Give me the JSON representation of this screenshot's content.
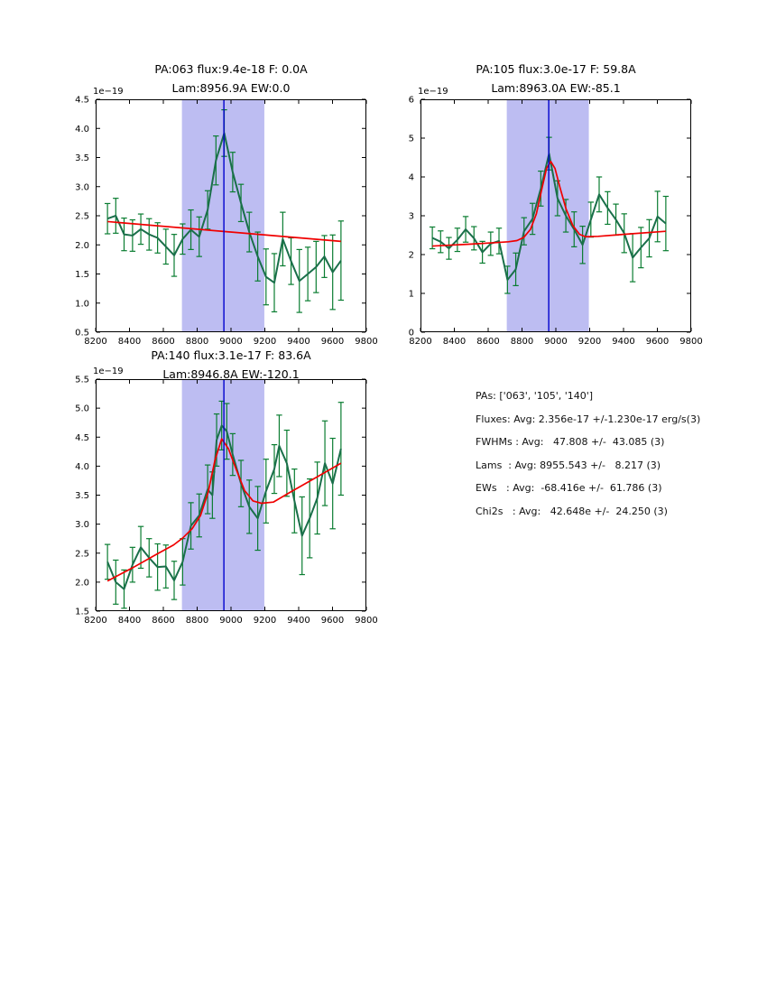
{
  "colors": {
    "background": "#ffffff",
    "band": "#bdbdf2",
    "vline": "#0000cd",
    "data_line": "#1a6f4a",
    "error_bar": "#0a7d31",
    "fit_line": "#f00000",
    "frame": "#000000",
    "text": "#000000"
  },
  "summary": {
    "lines": [
      "PAs: ['063', '105', '140']",
      "Fluxes: Avg: 2.356e-17 +/-1.230e-17 erg/s(3)",
      "FWHMs : Avg:   47.808 +/-  43.085 (3)",
      "Lams  : Avg: 8955.543 +/-   8.217 (3)",
      "EWs   : Avg:  -68.416e +/-  61.786 (3)",
      "Chi2s   : Avg:   42.648e +/-  24.250 (3)"
    ]
  },
  "chart_data": [
    {
      "type": "line",
      "title_line1": "PA:063 flux:9.4e-18 F: 0.0A",
      "title_line2": "Lam:8956.9A EW:0.0",
      "pa": "063",
      "flux": "9.4e-18",
      "fwhm_A": 0.0,
      "lam_A": 8956.9,
      "ew": 0.0,
      "offset_label": "1e−19",
      "xlim": [
        8200,
        9800
      ],
      "ylim": [
        0.5,
        4.5
      ],
      "xticks": [
        8200,
        8400,
        8600,
        8800,
        9000,
        9200,
        9400,
        9600,
        9800
      ],
      "xtick_labels": [
        "8200",
        "8400",
        "8600",
        "8800",
        "9000",
        "9200",
        "9400",
        "9600",
        "9800"
      ],
      "yticks": [
        0.5,
        1.0,
        1.5,
        2.0,
        2.5,
        3.0,
        3.5,
        4.0,
        4.5
      ],
      "ytick_labels": [
        "0.5",
        "1.0",
        "1.5",
        "2.0",
        "2.5",
        "3.0",
        "3.5",
        "4.0",
        "4.5"
      ],
      "band": [
        8710,
        9197
      ],
      "vline": 8958,
      "grid": false,
      "legend": null,
      "series": [
        {
          "name": "spectrum",
          "x": [
            8270,
            8319,
            8368,
            8418,
            8467,
            8516,
            8566,
            8615,
            8664,
            8714,
            8763,
            8812,
            8862,
            8911,
            8960,
            9010,
            9059,
            9108,
            9158,
            9207,
            9256,
            9306,
            9355,
            9404,
            9454,
            9503,
            9552,
            9601,
            9650
          ],
          "y": [
            2.45,
            2.5,
            2.18,
            2.16,
            2.27,
            2.18,
            2.12,
            1.97,
            1.82,
            2.1,
            2.26,
            2.14,
            2.6,
            3.45,
            3.92,
            3.25,
            2.72,
            2.22,
            1.8,
            1.45,
            1.35,
            2.1,
            1.72,
            1.38,
            1.5,
            1.62,
            1.8,
            1.53,
            1.73
          ],
          "yerr": [
            0.26,
            0.3,
            0.28,
            0.27,
            0.26,
            0.27,
            0.26,
            0.3,
            0.36,
            0.26,
            0.34,
            0.34,
            0.33,
            0.42,
            0.4,
            0.34,
            0.32,
            0.34,
            0.42,
            0.48,
            0.5,
            0.46,
            0.4,
            0.54,
            0.46,
            0.44,
            0.36,
            0.64,
            0.68
          ]
        },
        {
          "name": "fit",
          "x": [
            8270,
            9650
          ],
          "y": [
            2.4,
            2.06
          ]
        }
      ]
    },
    {
      "type": "line",
      "title_line1": "PA:105 flux:3.0e-17 F: 59.8A",
      "title_line2": "Lam:8963.0A EW:-85.1",
      "pa": "105",
      "flux": "3.0e-17",
      "fwhm_A": 59.8,
      "lam_A": 8963.0,
      "ew": -85.1,
      "offset_label": "1e−19",
      "xlim": [
        8200,
        9800
      ],
      "ylim": [
        0,
        6
      ],
      "xticks": [
        8200,
        8400,
        8600,
        8800,
        9000,
        9200,
        9400,
        9600,
        9800
      ],
      "xtick_labels": [
        "8200",
        "8400",
        "8600",
        "8800",
        "9000",
        "9200",
        "9400",
        "9600",
        "9800"
      ],
      "yticks": [
        0,
        1,
        2,
        3,
        4,
        5,
        6
      ],
      "ytick_labels": [
        "0",
        "1",
        "2",
        "3",
        "4",
        "5",
        "6"
      ],
      "band": [
        8710,
        9195
      ],
      "vline": 8958,
      "grid": false,
      "legend": null,
      "series": [
        {
          "name": "spectrum",
          "x": [
            8270,
            8319,
            8368,
            8418,
            8467,
            8516,
            8566,
            8615,
            8664,
            8714,
            8763,
            8812,
            8862,
            8911,
            8960,
            9010,
            9059,
            9108,
            9158,
            9207,
            9256,
            9306,
            9355,
            9404,
            9454,
            9503,
            9552,
            9601,
            9650
          ],
          "y": [
            2.43,
            2.33,
            2.16,
            2.38,
            2.65,
            2.42,
            2.06,
            2.28,
            2.35,
            1.35,
            1.62,
            2.6,
            2.92,
            3.7,
            4.6,
            3.45,
            3.0,
            2.65,
            2.25,
            2.9,
            3.55,
            3.2,
            2.9,
            2.55,
            1.92,
            2.18,
            2.42,
            2.98,
            2.8
          ],
          "yerr": [
            0.28,
            0.28,
            0.28,
            0.3,
            0.33,
            0.3,
            0.28,
            0.3,
            0.33,
            0.35,
            0.42,
            0.35,
            0.4,
            0.45,
            0.42,
            0.45,
            0.42,
            0.45,
            0.48,
            0.45,
            0.45,
            0.42,
            0.4,
            0.5,
            0.62,
            0.52,
            0.48,
            0.65,
            0.7
          ]
        },
        {
          "name": "fit",
          "x": [
            8270,
            8500,
            8650,
            8720,
            8770,
            8810,
            8850,
            8885,
            8915,
            8945,
            8970,
            8995,
            9025,
            9060,
            9100,
            9140,
            9175,
            9250,
            9400,
            9650
          ],
          "y": [
            2.22,
            2.27,
            2.31,
            2.33,
            2.36,
            2.44,
            2.65,
            3.05,
            3.65,
            4.22,
            4.4,
            4.22,
            3.72,
            3.18,
            2.75,
            2.52,
            2.46,
            2.47,
            2.52,
            2.6
          ]
        }
      ]
    },
    {
      "type": "line",
      "title_line1": "PA:140 flux:3.1e-17 F: 83.6A",
      "title_line2": "Lam:8946.8A EW:-120.1",
      "pa": "140",
      "flux": "3.1e-17",
      "fwhm_A": 83.6,
      "lam_A": 8946.8,
      "ew": -120.1,
      "offset_label": "1e−19",
      "xlim": [
        8200,
        9800
      ],
      "ylim": [
        1.5,
        5.5
      ],
      "xticks": [
        8200,
        8400,
        8600,
        8800,
        9000,
        9200,
        9400,
        9600,
        9800
      ],
      "xtick_labels": [
        "8200",
        "8400",
        "8600",
        "8800",
        "9000",
        "9200",
        "9400",
        "9600",
        "9800"
      ],
      "yticks": [
        1.5,
        2.0,
        2.5,
        3.0,
        3.5,
        4.0,
        4.5,
        5.0,
        5.5
      ],
      "ytick_labels": [
        "1.5",
        "2.0",
        "2.5",
        "3.0",
        "3.5",
        "4.0",
        "4.5",
        "5.0",
        "5.5"
      ],
      "band": [
        8710,
        9197
      ],
      "vline": 8958,
      "grid": false,
      "legend": null,
      "series": [
        {
          "name": "spectrum",
          "x": [
            8270,
            8319,
            8368,
            8418,
            8467,
            8516,
            8566,
            8615,
            8664,
            8714,
            8763,
            8812,
            8862,
            8890,
            8915,
            8945,
            8975,
            9010,
            9059,
            9108,
            9158,
            9207,
            9256,
            9285,
            9330,
            9375,
            9420,
            9465,
            9510,
            9555,
            9601,
            9650
          ],
          "y": [
            2.35,
            2.0,
            1.88,
            2.3,
            2.6,
            2.42,
            2.26,
            2.27,
            2.03,
            2.35,
            2.97,
            3.15,
            3.6,
            3.5,
            4.45,
            4.7,
            4.6,
            4.2,
            3.7,
            3.3,
            3.1,
            3.57,
            3.95,
            4.35,
            4.05,
            3.4,
            2.8,
            3.1,
            3.45,
            4.05,
            3.7,
            4.3
          ],
          "yerr": [
            0.3,
            0.38,
            0.33,
            0.3,
            0.36,
            0.33,
            0.4,
            0.37,
            0.33,
            0.4,
            0.4,
            0.37,
            0.42,
            0.4,
            0.45,
            0.42,
            0.48,
            0.36,
            0.4,
            0.46,
            0.55,
            0.55,
            0.42,
            0.53,
            0.57,
            0.55,
            0.67,
            0.68,
            0.62,
            0.73,
            0.78,
            0.8
          ]
        },
        {
          "name": "fit",
          "x": [
            8270,
            8420,
            8560,
            8660,
            8714,
            8770,
            8820,
            8865,
            8905,
            8945,
            8985,
            9030,
            9080,
            9130,
            9180,
            9250,
            9350,
            9500,
            9650
          ],
          "y": [
            2.02,
            2.25,
            2.48,
            2.64,
            2.76,
            2.92,
            3.15,
            3.55,
            4.1,
            4.47,
            4.3,
            3.95,
            3.58,
            3.4,
            3.36,
            3.38,
            3.55,
            3.8,
            4.05
          ]
        }
      ]
    }
  ]
}
